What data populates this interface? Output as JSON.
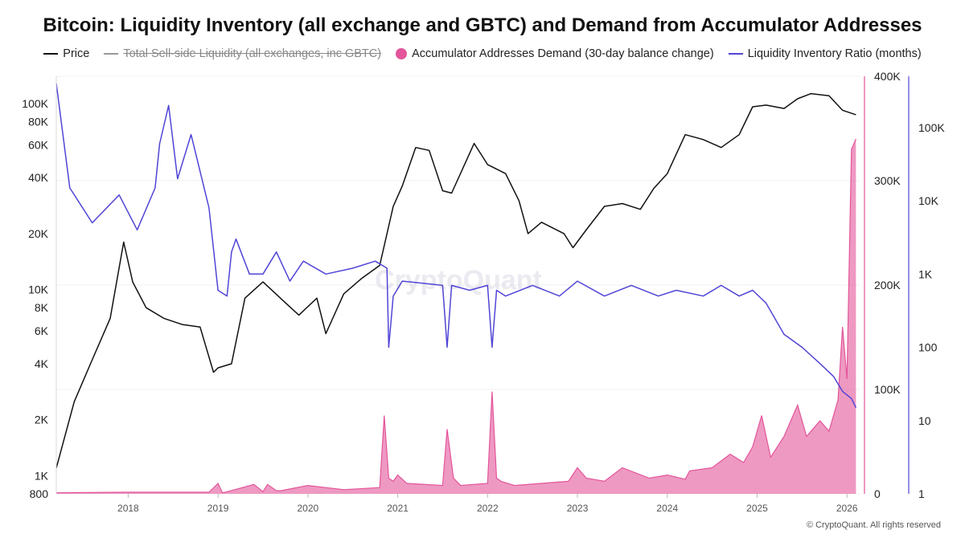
{
  "chart_data": {
    "type": "line",
    "title": "Bitcoin: Liquidity Inventory (all exchange and GBTC) and Demand from Accumulator Addresses",
    "legend_placement": "top",
    "grid": true,
    "x_ticks": [
      "2018",
      "2019",
      "2020",
      "2021",
      "2022",
      "2023",
      "2024",
      "2025",
      "2026"
    ],
    "x_range": [
      2017.2,
      2026.15
    ],
    "axes": {
      "price": {
        "scale": "log",
        "range": [
          800,
          140000
        ],
        "ticks": [
          "100K",
          "80K",
          "60K",
          "40K",
          "20K",
          "10K",
          "8K",
          "6K",
          "4K",
          "2K",
          "1K",
          "800"
        ],
        "tick_values": [
          100000,
          80000,
          60000,
          40000,
          20000,
          10000,
          8000,
          6000,
          4000,
          2000,
          1000,
          800
        ]
      },
      "demand": {
        "scale": "linear",
        "range": [
          0,
          400000
        ],
        "ticks": [
          "400K",
          "300K",
          "200K",
          "100K",
          "0"
        ],
        "tick_values": [
          400000,
          300000,
          200000,
          100000,
          0
        ]
      },
      "ratio": {
        "scale": "log",
        "range": [
          1,
          500000
        ],
        "ticks": [
          "100K",
          "10K",
          "1K",
          "100",
          "10",
          "1"
        ],
        "tick_values": [
          100000,
          10000,
          1000,
          100,
          10,
          1
        ]
      }
    },
    "series": [
      {
        "name": "Price",
        "axis": "price",
        "color": "#111111",
        "x": [
          2017.2,
          2017.4,
          2017.6,
          2017.8,
          2017.95,
          2018.05,
          2018.2,
          2018.4,
          2018.6,
          2018.8,
          2018.95,
          2019.0,
          2019.15,
          2019.3,
          2019.5,
          2019.75,
          2019.9,
          2020.1,
          2020.2,
          2020.4,
          2020.6,
          2020.8,
          2020.95,
          2021.05,
          2021.2,
          2021.35,
          2021.5,
          2021.6,
          2021.85,
          2022.0,
          2022.2,
          2022.35,
          2022.45,
          2022.6,
          2022.85,
          2022.95,
          2023.1,
          2023.3,
          2023.5,
          2023.7,
          2023.85,
          2024.0,
          2024.2,
          2024.4,
          2024.6,
          2024.8,
          2024.95,
          2025.1,
          2025.3,
          2025.45,
          2025.6,
          2025.8,
          2025.95,
          2026.1
        ],
        "values": [
          1100,
          2500,
          4200,
          7000,
          18000,
          11000,
          8000,
          7000,
          6500,
          6300,
          3600,
          3800,
          4000,
          9000,
          11000,
          8500,
          7300,
          9000,
          5800,
          9500,
          11500,
          13500,
          28000,
          36000,
          58000,
          56000,
          34000,
          33000,
          61000,
          47000,
          42000,
          30000,
          20000,
          23000,
          20000,
          16800,
          21000,
          28000,
          29000,
          27000,
          35000,
          42000,
          68000,
          64000,
          58000,
          68000,
          96000,
          98000,
          94000,
          106000,
          113000,
          110000,
          92000,
          87000
        ]
      },
      {
        "name": "Total Sell-side Liquidity (all exchanges, inc GBTC)",
        "axis": "demand",
        "color": "#999999",
        "hidden": true,
        "x": [],
        "values": []
      },
      {
        "name": "Accumulator Addresses Demand (30-day balance change)",
        "axis": "demand",
        "color": "#e3559a",
        "x": [
          2017.2,
          2018.0,
          2018.9,
          2019.0,
          2019.05,
          2019.1,
          2019.4,
          2019.5,
          2019.55,
          2019.65,
          2019.7,
          2020.0,
          2020.4,
          2020.8,
          2020.85,
          2020.9,
          2020.95,
          2021.0,
          2021.1,
          2021.5,
          2021.55,
          2021.62,
          2021.7,
          2022.0,
          2022.05,
          2022.1,
          2022.15,
          2022.3,
          2022.6,
          2022.9,
          2023.0,
          2023.1,
          2023.3,
          2023.5,
          2023.8,
          2024.0,
          2024.2,
          2024.25,
          2024.5,
          2024.7,
          2024.85,
          2024.95,
          2025.05,
          2025.15,
          2025.3,
          2025.45,
          2025.55,
          2025.7,
          2025.8,
          2025.9,
          2025.95,
          2026.0,
          2026.05,
          2026.1
        ],
        "values": [
          1000,
          1500,
          1500,
          10000,
          1000,
          2000,
          9000,
          2000,
          9000,
          3000,
          3000,
          8000,
          4000,
          6000,
          75000,
          15000,
          12000,
          18000,
          10000,
          8000,
          62000,
          15000,
          8000,
          10000,
          98000,
          15000,
          12000,
          8000,
          10000,
          12000,
          25000,
          15000,
          12000,
          25000,
          15000,
          18000,
          14000,
          22000,
          25000,
          38000,
          30000,
          45000,
          75000,
          35000,
          55000,
          85000,
          55000,
          70000,
          60000,
          90000,
          160000,
          110000,
          330000,
          340000
        ]
      },
      {
        "name": "Liquidity Inventory Ratio (months)",
        "axis": "ratio",
        "color": "#5145d6",
        "x": [
          2017.2,
          2017.35,
          2017.6,
          2017.9,
          2018.1,
          2018.3,
          2018.35,
          2018.45,
          2018.55,
          2018.7,
          2018.9,
          2019.0,
          2019.1,
          2019.15,
          2019.2,
          2019.35,
          2019.5,
          2019.65,
          2019.8,
          2019.95,
          2020.2,
          2020.5,
          2020.75,
          2020.88,
          2020.9,
          2020.95,
          2021.05,
          2021.5,
          2021.55,
          2021.6,
          2021.8,
          2022.0,
          2022.05,
          2022.1,
          2022.2,
          2022.5,
          2022.8,
          2023.0,
          2023.3,
          2023.6,
          2023.9,
          2024.1,
          2024.4,
          2024.6,
          2024.8,
          2024.95,
          2025.1,
          2025.3,
          2025.5,
          2025.7,
          2025.85,
          2025.95,
          2026.05,
          2026.1
        ],
        "values": [
          400000,
          15000,
          5000,
          12000,
          4000,
          15000,
          60000,
          200000,
          20000,
          80000,
          8000,
          600,
          500,
          2000,
          3000,
          1000,
          1000,
          2000,
          800,
          1500,
          1000,
          1200,
          1500,
          1200,
          100,
          500,
          800,
          700,
          100,
          700,
          600,
          700,
          100,
          600,
          500,
          700,
          500,
          800,
          500,
          700,
          500,
          600,
          500,
          700,
          500,
          600,
          400,
          150,
          100,
          60,
          40,
          25,
          20,
          15
        ]
      }
    ]
  },
  "watermark": "CryptoQuant",
  "footer": "© CryptoQuant. All rights reserved"
}
